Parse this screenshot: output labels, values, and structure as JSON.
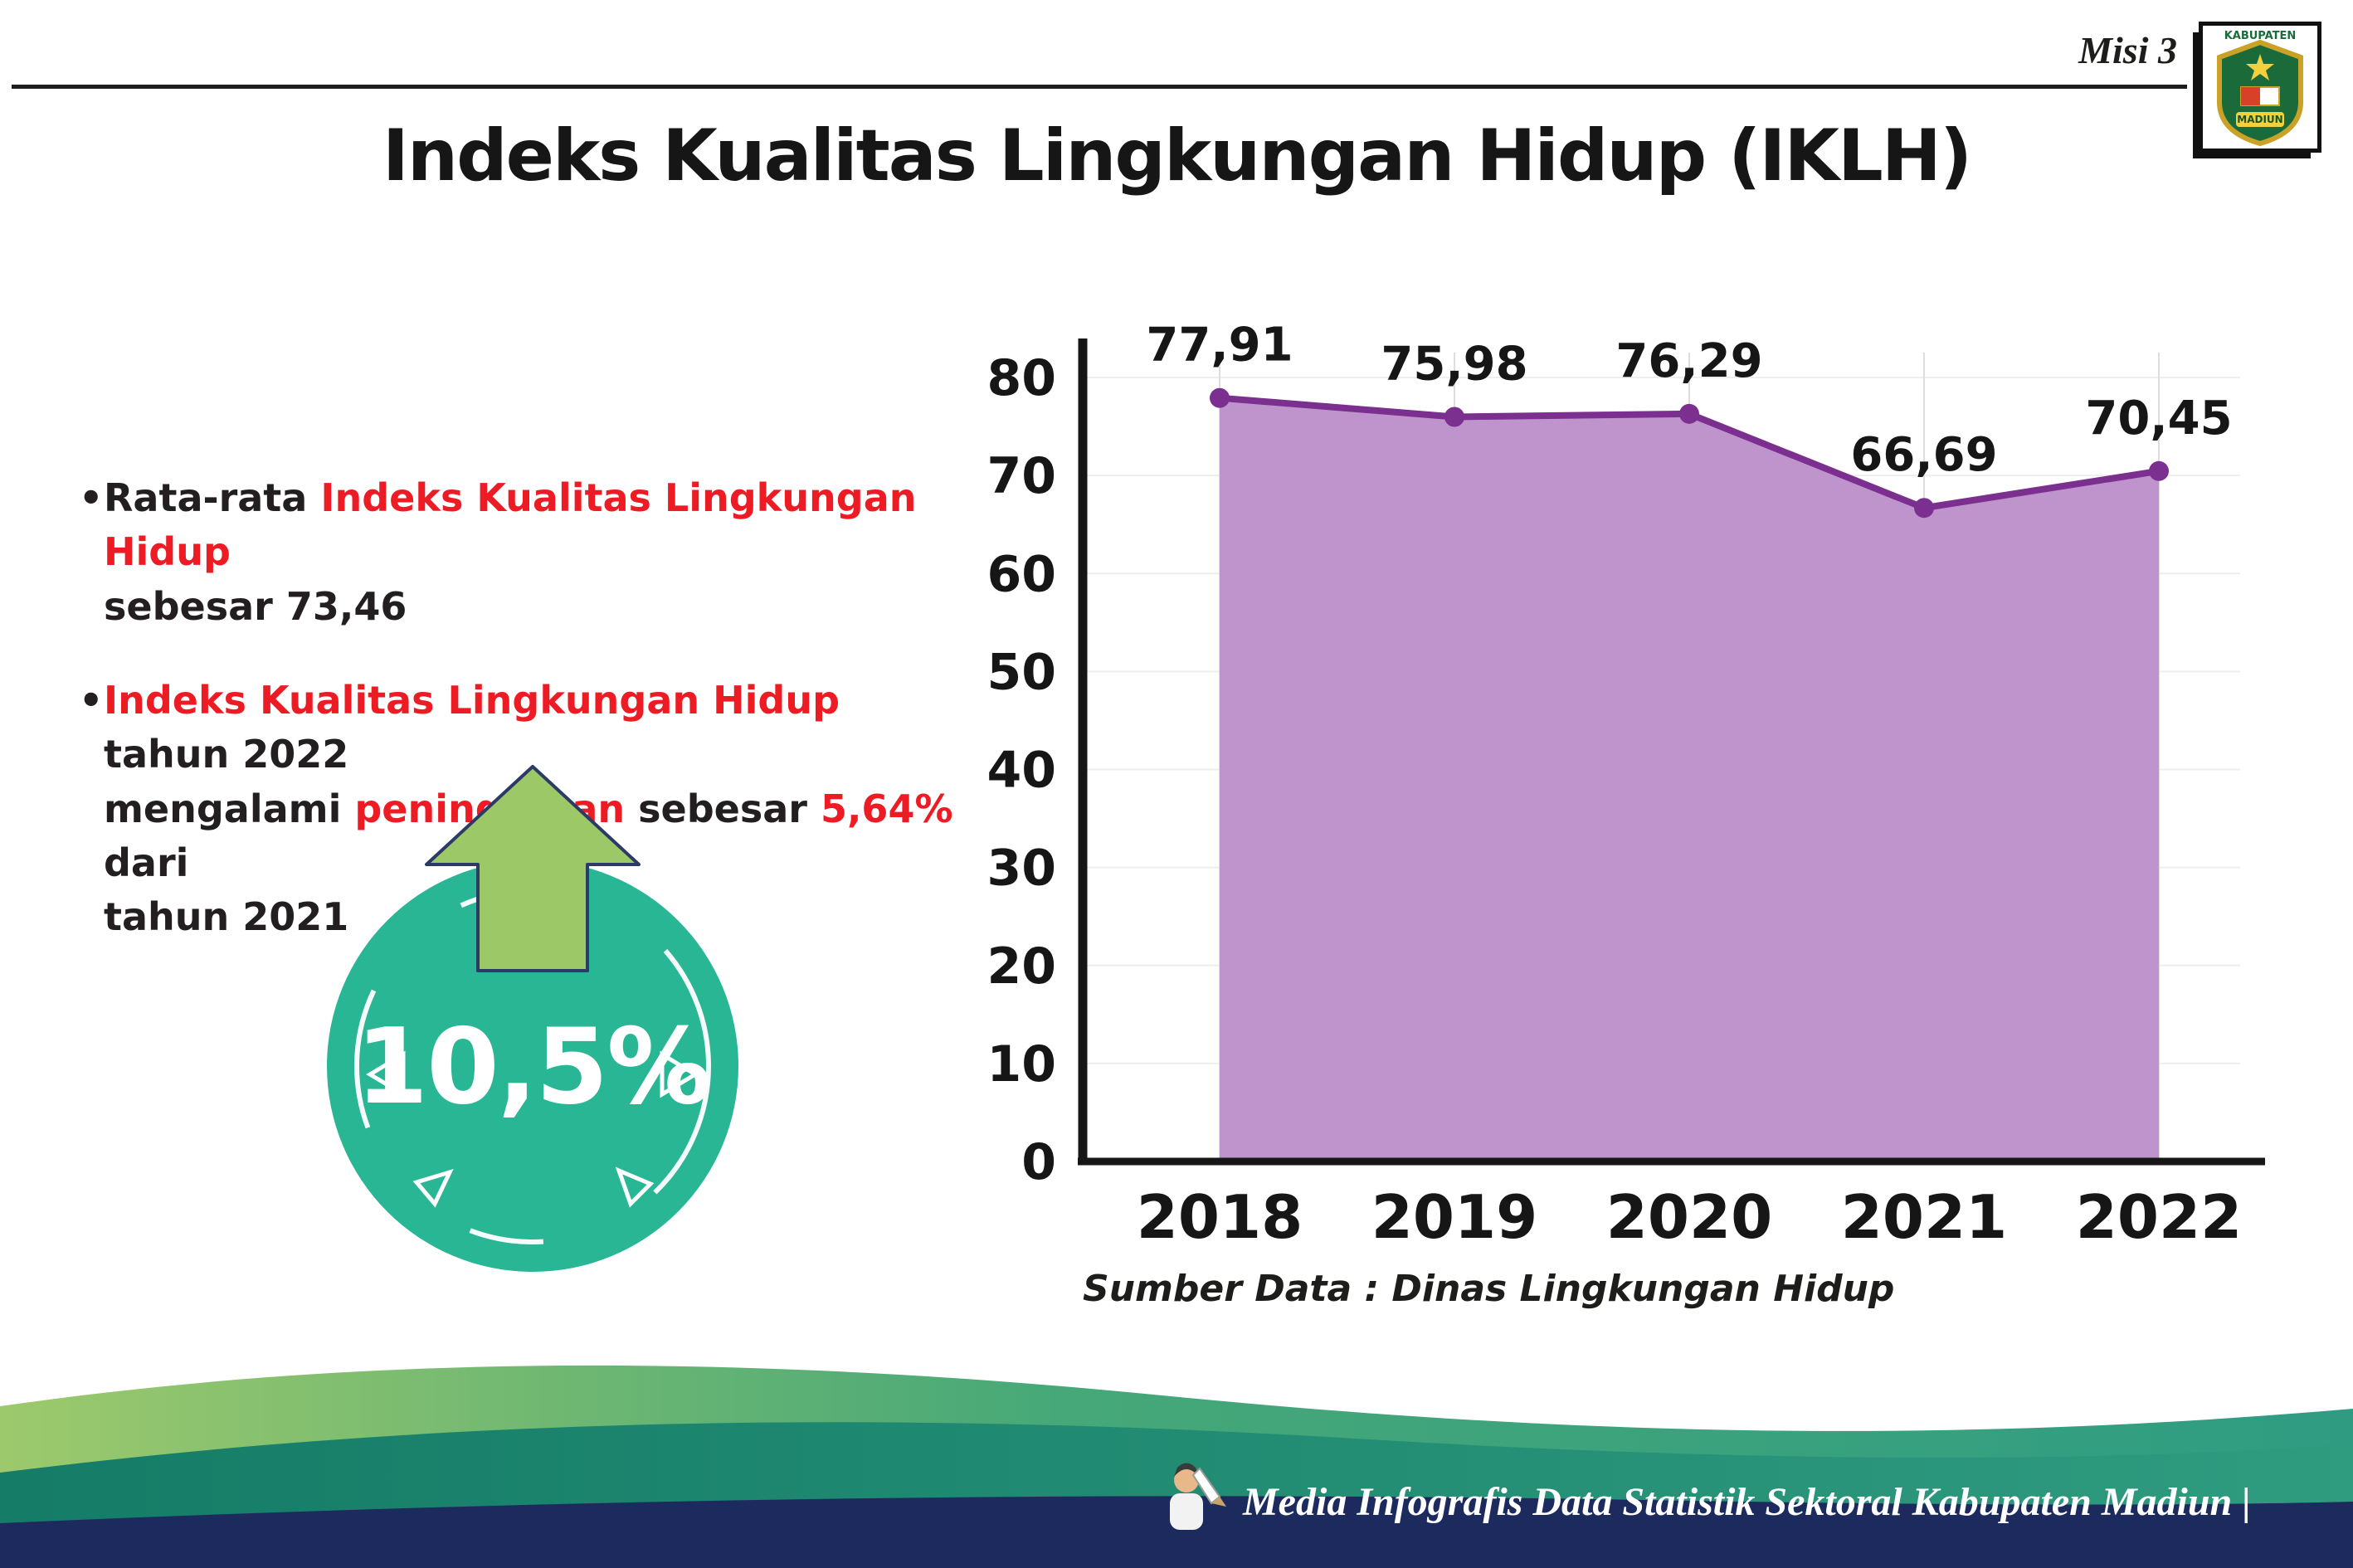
{
  "header": {
    "misi_label": "Misi 3",
    "logo": {
      "name": "kabupaten-madiun-logo",
      "top_text": "KABUPATEN",
      "bottom_text": "MADIUN"
    }
  },
  "title": "Indeks Kualitas Lingkungan Hidup (IKLH)",
  "bullets": [
    {
      "marker": "•",
      "lines": [
        [
          {
            "t": "Rata-rata ",
            "c": "#231f20"
          },
          {
            "t": "Indeks Kualitas Lingkungan Hidup",
            "c": "#ed1c24"
          }
        ],
        [
          {
            "t": "sebesar 73,46",
            "c": "#231f20"
          }
        ]
      ]
    },
    {
      "marker": "•",
      "lines": [
        [
          {
            "t": "Indeks Kualitas Lingkungan Hidup",
            "c": "#ed1c24"
          },
          {
            "t": " tahun 2022",
            "c": "#231f20"
          }
        ],
        [
          {
            "t": "mengalami ",
            "c": "#231f20"
          },
          {
            "t": "peningkatan",
            "c": "#ed1c24"
          },
          {
            "t": " sebesar ",
            "c": "#231f20"
          },
          {
            "t": "5,64%",
            "c": "#ed1c24"
          },
          {
            "t": " dari",
            "c": "#231f20"
          }
        ],
        [
          {
            "t": "tahun 2021",
            "c": "#231f20"
          }
        ]
      ]
    }
  ],
  "badge": {
    "value": "10,5%",
    "circle_color": "#29b694",
    "arrow_color": "#9cc868"
  },
  "chart_data": {
    "type": "area",
    "categories": [
      "2018",
      "2019",
      "2020",
      "2021",
      "2022"
    ],
    "values": [
      77.91,
      75.98,
      76.29,
      66.69,
      70.45
    ],
    "point_labels": [
      "77,91",
      "75,98",
      "76,29",
      "66,69",
      "70,45"
    ],
    "ylim": [
      0,
      80
    ],
    "yticks": [
      0,
      10,
      20,
      30,
      40,
      50,
      60,
      70,
      80
    ],
    "grid": true,
    "legend": "none",
    "line_color": "#7b2f8e",
    "fill_color": "#bf93cb",
    "source": "Sumber Data : Dinas Lingkungan Hidup"
  },
  "footer": {
    "text": "Media Infografis Data Statistik Sektoral Kabupaten Madiun |"
  },
  "colors": {
    "red": "#ed1c24",
    "ink": "#231f20",
    "teal": "#29b694",
    "green": "#9cc868",
    "navy": "#1c2a5e"
  }
}
